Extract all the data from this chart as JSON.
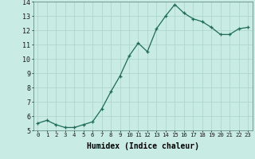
{
  "title": "",
  "xlabel": "Humidex (Indice chaleur)",
  "ylabel": "",
  "background_color": "#c8ebe3",
  "line_color": "#1e6b5a",
  "marker_color": "#1e6b5a",
  "grid_color": "#aad4cc",
  "ylim": [
    5,
    14
  ],
  "xlim": [
    -0.5,
    23.5
  ],
  "yticks": [
    5,
    6,
    7,
    8,
    9,
    10,
    11,
    12,
    13,
    14
  ],
  "xticks": [
    0,
    1,
    2,
    3,
    4,
    5,
    6,
    7,
    8,
    9,
    10,
    11,
    12,
    13,
    14,
    15,
    16,
    17,
    18,
    19,
    20,
    21,
    22,
    23
  ],
  "x": [
    0,
    1,
    2,
    3,
    4,
    5,
    6,
    7,
    8,
    9,
    10,
    11,
    12,
    13,
    14,
    15,
    16,
    17,
    18,
    19,
    20,
    21,
    22,
    23
  ],
  "y": [
    5.5,
    5.7,
    5.4,
    5.2,
    5.2,
    5.4,
    5.6,
    6.5,
    7.7,
    8.8,
    10.2,
    11.1,
    10.5,
    12.1,
    13.0,
    13.8,
    13.2,
    12.8,
    12.6,
    12.2,
    11.7,
    11.7,
    12.1,
    12.2
  ]
}
